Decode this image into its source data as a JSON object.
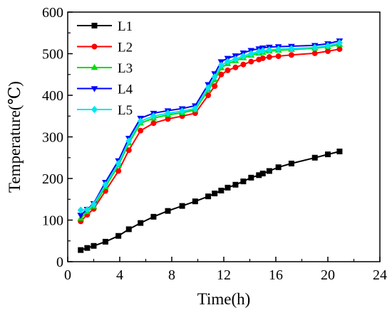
{
  "chart_data": {
    "type": "line",
    "title": "",
    "xlabel": "Time(h)",
    "ylabel": "Temperature(℃)",
    "xlim": [
      0,
      24
    ],
    "ylim": [
      0,
      600
    ],
    "xticks": [
      0,
      4,
      8,
      12,
      16,
      20,
      24
    ],
    "yticks": [
      0,
      100,
      200,
      300,
      400,
      500,
      600
    ],
    "grid": false,
    "legend_position": "top-left",
    "series": [
      {
        "name": "L1",
        "color": "#000000",
        "marker": "square",
        "x": [
          1.0,
          1.5,
          2.0,
          2.9,
          3.9,
          4.7,
          5.6,
          6.6,
          7.7,
          8.8,
          9.8,
          10.8,
          11.3,
          11.8,
          12.3,
          12.9,
          13.5,
          14.1,
          14.7,
          15.0,
          15.5,
          16.2,
          17.2,
          19.0,
          20.0,
          20.9
        ],
        "y": [
          28,
          33,
          38,
          48,
          62,
          78,
          93,
          108,
          122,
          134,
          145,
          157,
          164,
          171,
          178,
          185,
          193,
          202,
          208,
          212,
          218,
          227,
          236,
          250,
          258,
          265
        ]
      },
      {
        "name": "L2",
        "color": "#ff0000",
        "marker": "circle",
        "x": [
          1.0,
          1.5,
          2.0,
          2.9,
          3.9,
          4.7,
          5.6,
          6.6,
          7.7,
          8.8,
          9.8,
          10.8,
          11.3,
          11.8,
          12.3,
          12.9,
          13.5,
          14.1,
          14.7,
          15.0,
          15.5,
          16.2,
          17.2,
          19.0,
          20.0,
          20.9
        ],
        "y": [
          97,
          113,
          127,
          170,
          218,
          268,
          315,
          333,
          343,
          350,
          357,
          400,
          422,
          450,
          460,
          467,
          474,
          481,
          486,
          489,
          492,
          494,
          497,
          501,
          506,
          511
        ]
      },
      {
        "name": "L3",
        "color": "#00dd00",
        "marker": "triangle-up",
        "x": [
          1.0,
          1.5,
          2.0,
          2.9,
          3.9,
          4.7,
          5.6,
          6.6,
          7.7,
          8.8,
          9.8,
          10.8,
          11.3,
          11.8,
          12.3,
          12.9,
          13.5,
          14.1,
          14.7,
          15.0,
          15.5,
          16.2,
          17.2,
          19.0,
          20.0,
          20.9
        ],
        "y": [
          104,
          120,
          133,
          180,
          232,
          285,
          333,
          345,
          353,
          358,
          365,
          413,
          437,
          466,
          476,
          483,
          490,
          496,
          501,
          503,
          506,
          508,
          510,
          513,
          517,
          522
        ]
      },
      {
        "name": "L4",
        "color": "#0000ff",
        "marker": "triangle-down",
        "x": [
          1.0,
          1.5,
          2.0,
          2.9,
          3.9,
          4.7,
          5.6,
          6.6,
          7.7,
          8.8,
          9.8,
          10.8,
          11.3,
          11.8,
          12.3,
          12.9,
          13.5,
          14.1,
          14.7,
          15.0,
          15.5,
          16.2,
          17.2,
          19.0,
          20.0,
          20.9
        ],
        "y": [
          112,
          126,
          140,
          191,
          243,
          297,
          345,
          357,
          363,
          368,
          375,
          426,
          452,
          481,
          489,
          495,
          502,
          508,
          512,
          514,
          516,
          517,
          518,
          520,
          524,
          531
        ]
      },
      {
        "name": "L5",
        "color": "#00e5ee",
        "marker": "diamond",
        "x": [
          1.0,
          1.5,
          2.0,
          2.9,
          3.9,
          4.7,
          5.6,
          6.6,
          7.7,
          8.8,
          9.8,
          10.8,
          11.3,
          11.8,
          12.3,
          12.9,
          13.5,
          14.1,
          14.7,
          15.0,
          15.5,
          16.2,
          17.2,
          19.0,
          20.0,
          20.9
        ],
        "y": [
          124,
          125,
          138,
          185,
          236,
          290,
          338,
          350,
          357,
          362,
          368,
          418,
          444,
          472,
          481,
          487,
          494,
          500,
          505,
          507,
          509,
          511,
          512,
          515,
          519,
          526
        ]
      }
    ]
  }
}
